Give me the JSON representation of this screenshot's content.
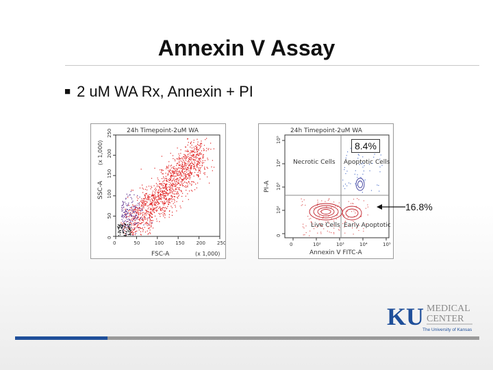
{
  "slide": {
    "title": "Annexin V Assay",
    "bullet": "2 uM WA Rx, Annexin + PI"
  },
  "left_plot": {
    "header": "24h Timepoint-2uM WA",
    "y_label": "SSC-A",
    "y_multiplier": "(x 1,000)",
    "x_label": "FSC-A",
    "x_multiplier": "(x 1,000)",
    "x_ticks": [
      "0",
      "50",
      "100",
      "150",
      "200",
      "250"
    ],
    "y_ticks": [
      "0",
      "50",
      "100",
      "150",
      "200",
      "250"
    ]
  },
  "right_plot": {
    "header": "24h Timepoint-2uM WA",
    "y_label": "PI-A",
    "x_label": "Annexin V FITC-A",
    "quadrants": {
      "upper_left": "Necrotic Cells",
      "upper_right": "Apoptotic Cells",
      "lower_left": "Live Cells",
      "lower_right": "Early Apoptotic Cells"
    },
    "x_ticks": [
      "0",
      "10²",
      "10³",
      "10⁴",
      "10⁵"
    ],
    "y_ticks": [
      "0",
      "10²",
      "10³",
      "10⁴",
      "10⁵"
    ],
    "upper_right_percent": "8.4%",
    "lower_right_percent": "16.8%"
  },
  "logo": {
    "mark": "KU",
    "line1": "MEDICAL",
    "line2": "CENTER",
    "tagline": "The University of Kansas",
    "colors": {
      "ku_blue": "#1f4f9a",
      "gray": "#8a8a8a"
    }
  },
  "colors": {
    "accent_blue": "#1f4f9a",
    "bar_gray": "#9a9a9a",
    "dot_red": "#e02020",
    "dot_purple": "#5a2a8a"
  }
}
